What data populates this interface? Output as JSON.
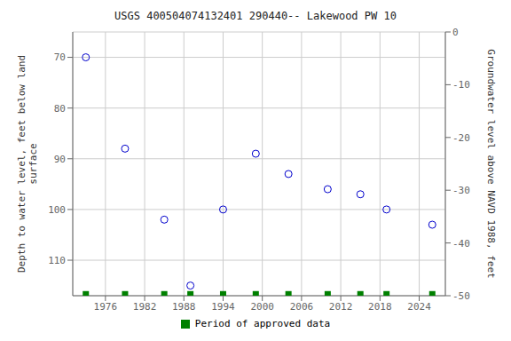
{
  "chart_data": {
    "type": "scatter",
    "title": "USGS 400504074132401 290440-- Lakewood PW 10",
    "y_label": "Depth to water level, feet below land\nsurface",
    "y2_label": "Groundwater level above NAVD 1988, feet",
    "x": [
      1973,
      1979,
      1985,
      1989,
      1994,
      1999,
      2004,
      2010,
      2015,
      2019,
      2026
    ],
    "series": [
      {
        "color": "#0000cc",
        "marker": "circle",
        "values": [
          70,
          88,
          102,
          115,
          100,
          89,
          93,
          96,
          97,
          100,
          103
        ]
      },
      {
        "name": "Period of approved data",
        "color": "#008000",
        "marker": "square",
        "values": [
          116.7,
          116.7,
          116.7,
          116.7,
          116.7,
          116.7,
          116.7,
          116.7,
          116.7,
          116.7,
          116.7
        ]
      }
    ],
    "xlim": [
      1971,
      2028
    ],
    "xticks": [
      1976,
      1982,
      1988,
      1994,
      2000,
      2006,
      2012,
      2018,
      2024
    ],
    "ylim": [
      117,
      65
    ],
    "yticks": [
      70,
      80,
      90,
      100,
      110
    ],
    "y2lim": [
      -50,
      0
    ],
    "y2ticks": [
      0,
      -10,
      -20,
      -30,
      -40,
      -50
    ],
    "grid": true,
    "legend": "bottom"
  }
}
